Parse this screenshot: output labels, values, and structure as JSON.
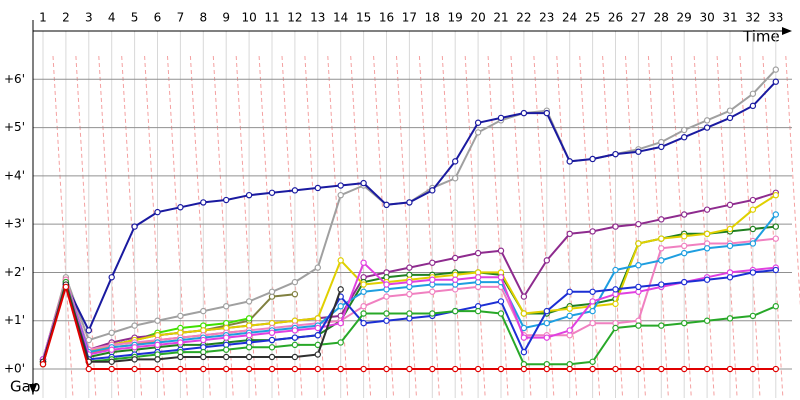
{
  "chart_data": {
    "type": "line",
    "x_label": "Time",
    "y_label": "Gap",
    "categories": [
      "1",
      "2",
      "3",
      "4",
      "5",
      "6",
      "7",
      "8",
      "9",
      "10",
      "11",
      "12",
      "13",
      "14",
      "15",
      "16",
      "17",
      "18",
      "19",
      "20",
      "21",
      "22",
      "23",
      "24",
      "25",
      "26",
      "27",
      "28",
      "29",
      "30",
      "31",
      "32",
      "33"
    ],
    "ylim": [
      -0.6,
      7.0
    ],
    "yticks": [
      {
        "value": 0,
        "label": "+0'"
      },
      {
        "value": 1,
        "label": "+1'"
      },
      {
        "value": 2,
        "label": "+2'"
      },
      {
        "value": 3,
        "label": "+3'"
      },
      {
        "value": 4,
        "label": "+4'"
      },
      {
        "value": 5,
        "label": "+5'"
      },
      {
        "value": 6,
        "label": "+6'"
      }
    ],
    "grid": true,
    "series": [
      {
        "color": "#808040",
        "values": [
          0.2,
          1.8,
          0.4,
          0.5,
          0.6,
          0.7,
          0.75,
          0.8,
          0.9,
          1.0,
          1.5,
          1.55,
          null,
          null,
          null,
          null,
          null,
          null,
          null,
          null,
          null,
          null,
          null,
          null,
          null,
          null,
          null,
          null,
          null,
          null,
          null,
          null,
          null
        ]
      },
      {
        "color": "#40e000",
        "values": [
          0.15,
          1.8,
          0.35,
          0.5,
          0.6,
          0.75,
          0.85,
          0.9,
          0.95,
          1.05,
          null,
          null,
          null,
          null,
          null,
          null,
          null,
          null,
          null,
          null,
          null,
          null,
          null,
          null,
          null,
          null,
          null,
          null,
          null,
          null,
          null,
          null,
          null
        ]
      },
      {
        "color": "#ff8000",
        "values": [
          0.15,
          1.75,
          0.3,
          0.45,
          0.5,
          0.6,
          0.65,
          0.7,
          0.75,
          0.8,
          null,
          null,
          null,
          null,
          null,
          null,
          null,
          null,
          null,
          null,
          null,
          null,
          null,
          null,
          null,
          null,
          null,
          null,
          null,
          null,
          null,
          null,
          null
        ]
      },
      {
        "color": "#a0a0a0",
        "values": [
          0.2,
          1.9,
          0.6,
          0.75,
          0.9,
          1.0,
          1.1,
          1.2,
          1.3,
          1.4,
          1.6,
          1.8,
          2.1,
          3.6,
          3.8,
          3.4,
          3.45,
          3.75,
          3.95,
          4.9,
          5.15,
          5.3,
          5.35,
          4.3,
          4.35,
          4.45,
          4.55,
          4.7,
          4.95,
          5.15,
          5.35,
          5.7,
          6.2
        ]
      },
      {
        "color": "#1a1aa0",
        "values": [
          0.2,
          1.75,
          0.8,
          1.9,
          2.95,
          3.25,
          3.35,
          3.45,
          3.5,
          3.6,
          3.65,
          3.7,
          3.75,
          3.8,
          3.85,
          3.4,
          3.45,
          3.7,
          4.3,
          5.1,
          5.2,
          5.3,
          5.3,
          4.3,
          4.35,
          4.45,
          4.5,
          4.6,
          4.8,
          5.0,
          5.2,
          5.45,
          5.95
        ]
      },
      {
        "color": "#8e2b8e",
        "values": [
          0.2,
          1.85,
          0.4,
          0.55,
          0.65,
          0.7,
          0.75,
          0.8,
          0.85,
          0.9,
          0.95,
          1.0,
          1.05,
          1.1,
          1.9,
          2.0,
          2.1,
          2.2,
          2.3,
          2.4,
          2.45,
          1.5,
          2.25,
          2.8,
          2.85,
          2.95,
          3.0,
          3.1,
          3.2,
          3.3,
          3.4,
          3.5,
          3.65
        ]
      },
      {
        "color": "#208020",
        "values": [
          0.15,
          1.8,
          0.25,
          0.35,
          0.4,
          0.45,
          0.5,
          0.5,
          0.55,
          0.6,
          0.6,
          0.65,
          0.7,
          1.0,
          1.8,
          1.9,
          1.95,
          1.95,
          2.0,
          2.0,
          1.95,
          1.15,
          1.15,
          1.3,
          1.35,
          1.45,
          2.6,
          2.7,
          2.8,
          2.8,
          2.85,
          2.9,
          2.95
        ]
      },
      {
        "color": "#e0d000",
        "values": [
          0.2,
          1.85,
          0.35,
          0.5,
          0.6,
          0.7,
          0.75,
          0.8,
          0.85,
          0.9,
          0.95,
          1.0,
          1.05,
          2.25,
          1.75,
          1.8,
          1.85,
          1.9,
          1.95,
          2.0,
          2.0,
          1.15,
          1.2,
          1.25,
          1.3,
          1.35,
          2.6,
          2.7,
          2.75,
          2.8,
          2.9,
          3.3,
          3.6
        ]
      },
      {
        "color": "#f080c0",
        "values": [
          0.2,
          1.85,
          0.4,
          0.5,
          0.55,
          0.6,
          0.65,
          0.7,
          0.75,
          0.8,
          0.85,
          0.9,
          0.95,
          1.0,
          1.3,
          1.5,
          1.55,
          1.6,
          1.65,
          1.7,
          1.7,
          0.7,
          0.7,
          0.7,
          0.95,
          0.95,
          1.0,
          2.5,
          2.55,
          2.6,
          2.6,
          2.65,
          2.7
        ]
      },
      {
        "color": "#1e9ee0",
        "values": [
          0.2,
          1.8,
          0.35,
          0.45,
          0.5,
          0.55,
          0.6,
          0.65,
          0.7,
          0.75,
          0.8,
          0.85,
          0.9,
          1.3,
          1.6,
          1.65,
          1.7,
          1.75,
          1.75,
          1.8,
          1.8,
          0.85,
          0.95,
          1.1,
          1.2,
          2.05,
          2.15,
          2.25,
          2.4,
          2.5,
          2.55,
          2.6,
          3.2
        ]
      },
      {
        "color": "#e040e0",
        "values": [
          0.2,
          1.8,
          0.3,
          0.4,
          0.45,
          0.5,
          0.55,
          0.6,
          0.65,
          0.7,
          0.75,
          0.8,
          0.85,
          0.95,
          2.2,
          1.75,
          1.8,
          1.85,
          1.85,
          1.9,
          1.9,
          0.65,
          0.65,
          0.8,
          1.4,
          1.55,
          1.6,
          1.7,
          1.8,
          1.9,
          2.0,
          2.05,
          2.1
        ]
      },
      {
        "color": "#1c2fd4",
        "values": [
          0.15,
          1.75,
          0.2,
          0.25,
          0.3,
          0.35,
          0.4,
          0.45,
          0.5,
          0.55,
          0.6,
          0.65,
          0.7,
          1.5,
          0.95,
          1.0,
          1.05,
          1.1,
          1.2,
          1.3,
          1.4,
          0.35,
          1.2,
          1.6,
          1.6,
          1.65,
          1.7,
          1.75,
          1.8,
          1.85,
          1.9,
          2.0,
          2.05
        ]
      },
      {
        "color": "#28a828",
        "values": [
          0.1,
          1.8,
          0.15,
          0.2,
          0.25,
          0.3,
          0.35,
          0.35,
          0.4,
          0.45,
          0.45,
          0.5,
          0.5,
          0.55,
          1.15,
          1.15,
          1.15,
          1.15,
          1.2,
          1.2,
          1.15,
          0.1,
          0.1,
          0.1,
          0.15,
          0.85,
          0.9,
          0.9,
          0.95,
          1.0,
          1.05,
          1.1,
          1.3
        ]
      },
      {
        "color": "#303030",
        "values": [
          0.15,
          1.75,
          0.15,
          0.15,
          0.2,
          0.2,
          0.25,
          0.25,
          0.25,
          0.25,
          0.25,
          0.25,
          0.3,
          1.65,
          null,
          null,
          null,
          null,
          null,
          null,
          null,
          null,
          null,
          null,
          null,
          null,
          null,
          null,
          null,
          null,
          null,
          null,
          null
        ]
      },
      {
        "color": "#e00000",
        "values": [
          0.1,
          1.7,
          0,
          0,
          0,
          0,
          0,
          0,
          0,
          0,
          0,
          0,
          0,
          0,
          0,
          0,
          0,
          0,
          0,
          0,
          0,
          0,
          0,
          0,
          0,
          0,
          0,
          0,
          0,
          0,
          0,
          0,
          0
        ]
      }
    ]
  }
}
